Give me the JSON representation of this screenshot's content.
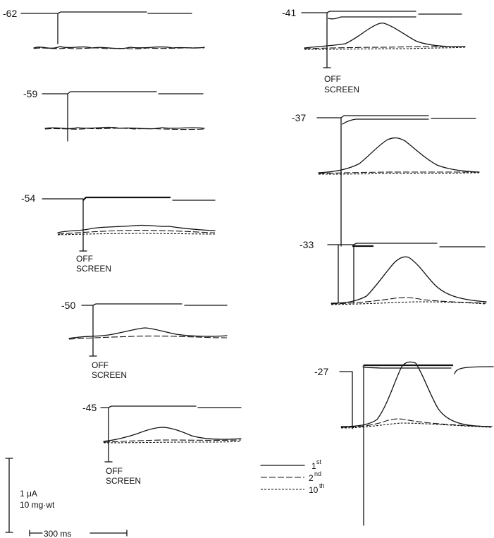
{
  "left_panels": [
    {
      "voltage": "-62",
      "off_screen": false
    },
    {
      "voltage": "-59",
      "off_screen": false
    },
    {
      "voltage": "-54",
      "off_screen": true
    },
    {
      "voltage": "-50",
      "off_screen": true
    },
    {
      "voltage": "-45",
      "off_screen": true
    }
  ],
  "right_panels": [
    {
      "voltage": "-41",
      "off_screen": true
    },
    {
      "voltage": "-37",
      "off_screen": false
    },
    {
      "voltage": "-33",
      "off_screen": false
    },
    {
      "voltage": "-27",
      "off_screen": false
    }
  ],
  "off_label_line1": "OFF",
  "off_label_line2": "SCREEN",
  "scale_bar": {
    "current_label": "1 μA",
    "force_label": "10 mg·wt",
    "time_label": "300 ms"
  },
  "legend": [
    {
      "label": "1",
      "sup": "st",
      "style": "solid"
    },
    {
      "label": "2",
      "sup": "nd",
      "style": "dashed"
    },
    {
      "label": "10",
      "sup": "th",
      "style": "dotted"
    }
  ]
}
